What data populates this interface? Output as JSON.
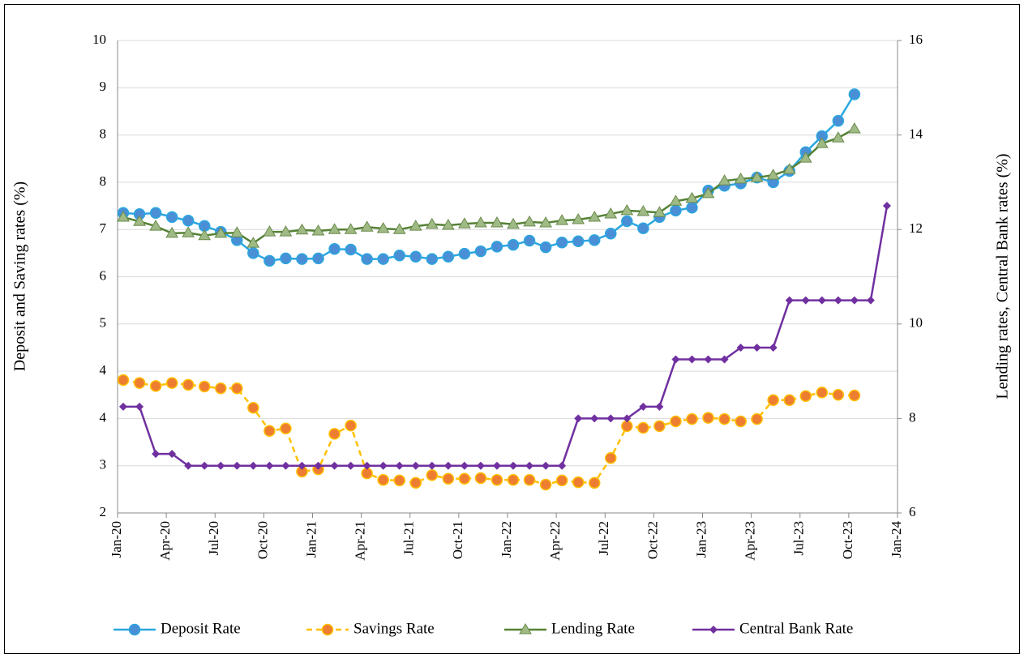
{
  "chart_data": {
    "type": "line",
    "y_title": "Deposit and Saving rates (%)",
    "y2_title": "Lending rates, Central Bank rates (%)",
    "x": [
      "2020-01",
      "2020-02",
      "2020-03",
      "2020-04",
      "2020-05",
      "2020-06",
      "2020-07",
      "2020-08",
      "2020-09",
      "2020-10",
      "2020-11",
      "2020-12",
      "2021-01",
      "2021-02",
      "2021-03",
      "2021-04",
      "2021-05",
      "2021-06",
      "2021-07",
      "2021-08",
      "2021-09",
      "2021-10",
      "2021-11",
      "2021-12",
      "2022-01",
      "2022-02",
      "2022-03",
      "2022-04",
      "2022-05",
      "2022-06",
      "2022-07",
      "2022-08",
      "2022-09",
      "2022-10",
      "2022-11",
      "2022-12",
      "2023-01",
      "2023-02",
      "2023-03",
      "2023-04",
      "2023-05",
      "2023-06",
      "2023-07",
      "2023-08",
      "2023-09",
      "2023-10",
      "2023-11",
      "2023-12"
    ],
    "xlim": [
      "2020-01",
      "2024-01"
    ],
    "xticks": [
      {
        "value": "2020-01",
        "label": "Jan-20"
      },
      {
        "value": "2020-04",
        "label": "Apr-20"
      },
      {
        "value": "2020-07",
        "label": "Jul-20"
      },
      {
        "value": "2020-10",
        "label": "Oct-20"
      },
      {
        "value": "2021-01",
        "label": "Jan-21"
      },
      {
        "value": "2021-04",
        "label": "Apr-21"
      },
      {
        "value": "2021-07",
        "label": "Jul-21"
      },
      {
        "value": "2021-10",
        "label": "Oct-21"
      },
      {
        "value": "2022-01",
        "label": "Jan-22"
      },
      {
        "value": "2022-04",
        "label": "Apr-22"
      },
      {
        "value": "2022-07",
        "label": "Jul-22"
      },
      {
        "value": "2022-10",
        "label": "Oct-22"
      },
      {
        "value": "2023-01",
        "label": "Jan-23"
      },
      {
        "value": "2023-04",
        "label": "Apr-23"
      },
      {
        "value": "2023-07",
        "label": "Jul-23"
      },
      {
        "value": "2023-10",
        "label": "Oct-23"
      },
      {
        "value": "2024-01",
        "label": "Jan-24"
      }
    ],
    "ylim": [
      2,
      10
    ],
    "yticks": [
      2,
      {
        "value": 2.8,
        "label": "3"
      },
      {
        "value": 3.6,
        "label": "4"
      },
      {
        "value": 4.4,
        "label": "4"
      },
      {
        "value": 5.2,
        "label": "5"
      },
      6,
      {
        "value": 6.8,
        "label": "7"
      },
      {
        "value": 7.6,
        "label": "8"
      },
      {
        "value": 8.4,
        "label": "8"
      },
      {
        "value": 9.2,
        "label": "9"
      },
      10
    ],
    "y2lim": [
      6,
      16
    ],
    "y2ticks": [
      6,
      8,
      10,
      12,
      14,
      16
    ],
    "grid": true,
    "legend": "bottom",
    "series": [
      {
        "name": "Deposit Rate",
        "color": "#2aa7e0",
        "marker": "circle",
        "marker_color": "#4a8fd6",
        "dashed": false,
        "values": [
          7.08,
          7.06,
          7.08,
          7.01,
          6.95,
          6.86,
          6.76,
          6.62,
          6.4,
          6.27,
          6.31,
          6.3,
          6.31,
          6.47,
          6.46,
          6.3,
          6.3,
          6.36,
          6.34,
          6.3,
          6.34,
          6.39,
          6.43,
          6.51,
          6.54,
          6.61,
          6.5,
          6.58,
          6.6,
          6.62,
          6.73,
          6.94,
          6.82,
          7.01,
          7.12,
          7.17,
          7.46,
          7.54,
          7.58,
          7.68,
          7.6,
          7.79,
          8.11,
          8.38,
          8.64,
          9.09,
          null,
          null
        ]
      },
      {
        "name": "Savings Rate",
        "color": "#ffc000",
        "marker": "circle",
        "marker_color": "#ed7d31",
        "dashed": true,
        "values": [
          4.25,
          4.2,
          4.15,
          4.2,
          4.17,
          4.14,
          4.11,
          4.11,
          3.78,
          3.39,
          3.43,
          2.7,
          2.74,
          3.34,
          3.48,
          2.67,
          2.56,
          2.55,
          2.51,
          2.64,
          2.58,
          2.58,
          2.59,
          2.56,
          2.56,
          2.56,
          2.48,
          2.55,
          2.52,
          2.51,
          2.93,
          3.47,
          3.44,
          3.47,
          3.55,
          3.59,
          3.61,
          3.59,
          3.55,
          3.59,
          3.91,
          3.91,
          3.98,
          4.04,
          4.0,
          3.99,
          null,
          null
        ]
      },
      {
        "name": "Lending Rate",
        "color": "#548235",
        "marker": "triangle",
        "marker_color": "#9fba84",
        "dashed": false,
        "axis": "y2",
        "values": [
          12.26,
          12.17,
          12.07,
          11.92,
          11.93,
          11.87,
          11.92,
          11.93,
          11.71,
          11.95,
          11.95,
          11.99,
          11.97,
          12.0,
          12.0,
          12.05,
          12.02,
          12.0,
          12.07,
          12.11,
          12.09,
          12.12,
          12.14,
          12.14,
          12.11,
          12.16,
          12.14,
          12.19,
          12.21,
          12.26,
          12.33,
          12.4,
          12.38,
          12.36,
          12.6,
          12.66,
          12.76,
          13.03,
          13.07,
          13.1,
          13.15,
          13.27,
          13.51,
          13.82,
          13.94,
          14.13,
          null,
          null
        ]
      },
      {
        "name": "Central Bank Rate",
        "color": "#7030a0",
        "marker": "diamond",
        "marker_color": "#7030a0",
        "dashed": false,
        "axis": "y2",
        "values": [
          8.25,
          8.25,
          7.25,
          7.25,
          7.0,
          7.0,
          7.0,
          7.0,
          7.0,
          7.0,
          7.0,
          7.0,
          7.0,
          7.0,
          7.0,
          7.0,
          7.0,
          7.0,
          7.0,
          7.0,
          7.0,
          7.0,
          7.0,
          7.0,
          7.0,
          7.0,
          7.0,
          7.0,
          8.0,
          8.0,
          8.0,
          8.0,
          8.25,
          8.25,
          9.25,
          9.25,
          9.25,
          9.25,
          9.5,
          9.5,
          9.5,
          10.5,
          10.5,
          10.5,
          10.5,
          10.5,
          10.5,
          12.5
        ]
      }
    ]
  }
}
